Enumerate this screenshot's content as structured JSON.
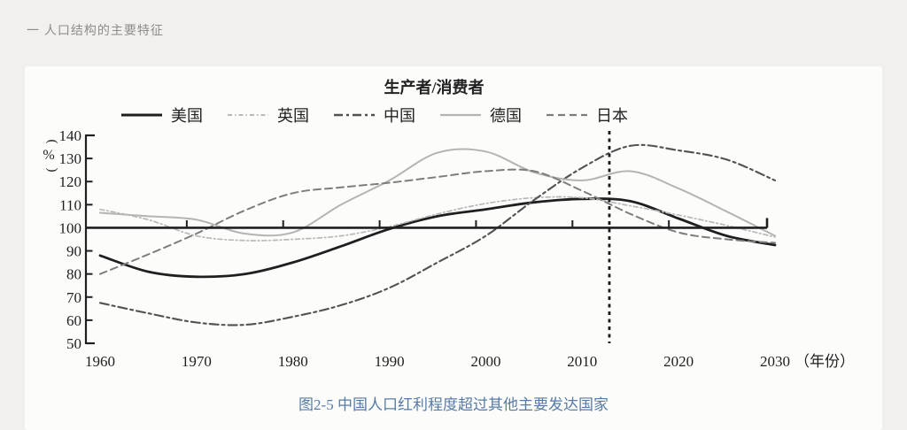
{
  "page": {
    "header": "一 人口结构的主要特征",
    "caption": "图2-5 中国人口红利程度超过其他主要发达国家",
    "caption_color": "#567ba6",
    "background": "#f1f0ee",
    "panel_background": "#fcfcfb"
  },
  "chart_data": {
    "type": "line",
    "title": "生产者/消费者",
    "ylabel": "%",
    "xlabel": "（年份）",
    "ylim": [
      50,
      140
    ],
    "ytick_step": 10,
    "grid": false,
    "legend_position": "top",
    "x": [
      1960,
      1965,
      1970,
      1975,
      1980,
      1985,
      1990,
      1995,
      2000,
      2005,
      2010,
      2015,
      2020,
      2025,
      2030
    ],
    "xticks": [
      1960,
      1970,
      1980,
      1990,
      2000,
      2010,
      2020,
      2030
    ],
    "reference_line": {
      "value": 100
    },
    "vline": {
      "x": 2013,
      "style": "dashed",
      "color": "#1a1a1a"
    },
    "series": [
      {
        "key": "usa",
        "name": "美国",
        "color": "#1f1f1f",
        "style": "solid",
        "width": 2.8,
        "values": [
          88,
          81,
          78.8,
          80,
          85,
          92,
          99.5,
          105,
          108,
          111,
          112.5,
          111.5,
          104,
          96.5,
          92.5
        ]
      },
      {
        "key": "uk",
        "name": "英国",
        "color": "#b9b9b9",
        "style": "dashdot-fine",
        "width": 1.7,
        "values": [
          108,
          103.5,
          96.5,
          94.5,
          95,
          96.5,
          100.5,
          106,
          110.5,
          113,
          113,
          109.5,
          105.5,
          101,
          96
        ]
      },
      {
        "key": "china",
        "name": "中国",
        "color": "#525252",
        "style": "dashdot",
        "width": 2.1,
        "values": [
          67.5,
          63,
          59,
          58,
          61.5,
          66.5,
          74,
          85,
          96.5,
          112,
          126,
          135.5,
          133.5,
          129.5,
          120.5
        ]
      },
      {
        "key": "germany",
        "name": "德国",
        "color": "#b4b4b3",
        "style": "solid",
        "width": 2.0,
        "values": [
          106.5,
          105,
          103.5,
          97.5,
          98,
          110,
          120.5,
          132.5,
          133,
          124,
          120.5,
          124.5,
          117,
          107,
          96.5
        ]
      },
      {
        "key": "japan",
        "name": "日本",
        "color": "#7d7d7d",
        "style": "dashed",
        "width": 2.0,
        "values": [
          80,
          88.5,
          97.5,
          107.5,
          115,
          117.5,
          119.5,
          122,
          124.5,
          124.5,
          116,
          106,
          98,
          95,
          93.5
        ]
      }
    ]
  }
}
